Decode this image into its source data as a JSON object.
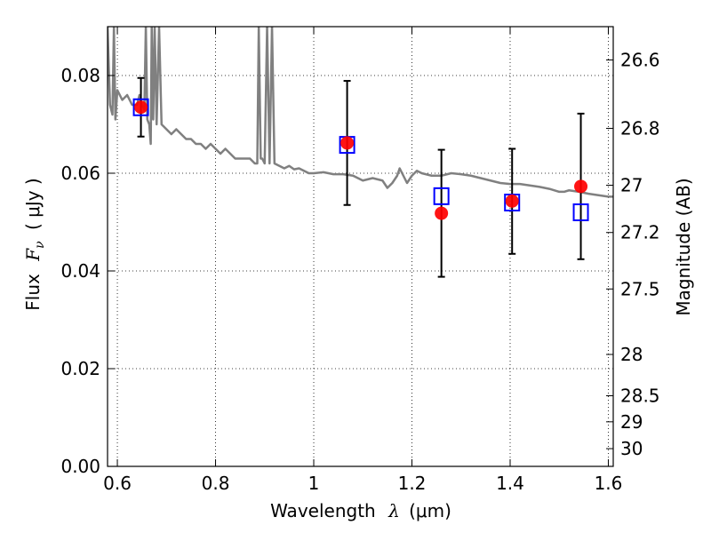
{
  "chart_data": {
    "type": "scatter",
    "xlabel": {
      "prefix": "Wavelength",
      "symbol": "λ",
      "unit": "(μm)"
    },
    "ylabel": {
      "prefix": "Flux",
      "symbol": "F",
      "sub": "ν",
      "unit": "( μJy )"
    },
    "ylabel_right": "Magnitude (AB)",
    "xlim": [
      0.58,
      1.61
    ],
    "ylim": [
      0,
      0.09
    ],
    "grid": true,
    "x_ticks": [
      {
        "v": 0.6,
        "label": "0.6"
      },
      {
        "v": 0.8,
        "label": "0.8"
      },
      {
        "v": 1.0,
        "label": "1"
      },
      {
        "v": 1.2,
        "label": "1.2"
      },
      {
        "v": 1.4,
        "label": "1.4"
      },
      {
        "v": 1.6,
        "label": "1.6"
      }
    ],
    "y_ticks": [
      {
        "v": 0.0,
        "label": "0.00"
      },
      {
        "v": 0.02,
        "label": "0.02"
      },
      {
        "v": 0.04,
        "label": "0.04"
      },
      {
        "v": 0.06,
        "label": "0.06"
      },
      {
        "v": 0.08,
        "label": "0.08"
      }
    ],
    "mag_ticks": [
      {
        "v": 26.6,
        "label": "26.6"
      },
      {
        "v": 26.8,
        "label": "26.8"
      },
      {
        "v": 27.0,
        "label": "27"
      },
      {
        "v": 27.2,
        "label": "27.2"
      },
      {
        "v": 27.5,
        "label": "27.5"
      },
      {
        "v": 28.0,
        "label": "28"
      },
      {
        "v": 28.5,
        "label": "28.5"
      },
      {
        "v": 29.0,
        "label": "29"
      },
      {
        "v": 30.0,
        "label": "30"
      }
    ],
    "series": [
      {
        "kind": "line",
        "color": "#808080",
        "points": [
          [
            0.58,
            0.09
          ],
          [
            0.585,
            0.074
          ],
          [
            0.59,
            0.072
          ],
          [
            0.593,
            0.09
          ],
          [
            0.596,
            0.071
          ],
          [
            0.6,
            0.077
          ],
          [
            0.61,
            0.075
          ],
          [
            0.62,
            0.076
          ],
          [
            0.63,
            0.074
          ],
          [
            0.64,
            0.074
          ],
          [
            0.645,
            0.076
          ],
          [
            0.65,
            0.074
          ],
          [
            0.655,
            0.073
          ],
          [
            0.658,
            0.09
          ],
          [
            0.661,
            0.071
          ],
          [
            0.665,
            0.07
          ],
          [
            0.668,
            0.066
          ],
          [
            0.67,
            0.09
          ],
          [
            0.673,
            0.071
          ],
          [
            0.676,
            0.09
          ],
          [
            0.68,
            0.07
          ],
          [
            0.685,
            0.09
          ],
          [
            0.69,
            0.07
          ],
          [
            0.7,
            0.069
          ],
          [
            0.71,
            0.068
          ],
          [
            0.72,
            0.069
          ],
          [
            0.73,
            0.068
          ],
          [
            0.74,
            0.067
          ],
          [
            0.75,
            0.067
          ],
          [
            0.76,
            0.066
          ],
          [
            0.77,
            0.066
          ],
          [
            0.78,
            0.065
          ],
          [
            0.79,
            0.066
          ],
          [
            0.8,
            0.065
          ],
          [
            0.81,
            0.064
          ],
          [
            0.82,
            0.065
          ],
          [
            0.83,
            0.064
          ],
          [
            0.84,
            0.063
          ],
          [
            0.85,
            0.063
          ],
          [
            0.86,
            0.063
          ],
          [
            0.87,
            0.063
          ],
          [
            0.88,
            0.062
          ],
          [
            0.885,
            0.062
          ],
          [
            0.888,
            0.09
          ],
          [
            0.892,
            0.063
          ],
          [
            0.895,
            0.063
          ],
          [
            0.9,
            0.062
          ],
          [
            0.905,
            0.09
          ],
          [
            0.91,
            0.062
          ],
          [
            0.915,
            0.09
          ],
          [
            0.92,
            0.062
          ],
          [
            0.93,
            0.0615
          ],
          [
            0.94,
            0.061
          ],
          [
            0.95,
            0.0615
          ],
          [
            0.96,
            0.0608
          ],
          [
            0.97,
            0.061
          ],
          [
            0.98,
            0.0605
          ],
          [
            0.99,
            0.06
          ],
          [
            1.0,
            0.06
          ],
          [
            1.02,
            0.0602
          ],
          [
            1.04,
            0.0598
          ],
          [
            1.06,
            0.0598
          ],
          [
            1.08,
            0.0595
          ],
          [
            1.1,
            0.0585
          ],
          [
            1.12,
            0.059
          ],
          [
            1.14,
            0.0585
          ],
          [
            1.15,
            0.057
          ],
          [
            1.16,
            0.058
          ],
          [
            1.17,
            0.0595
          ],
          [
            1.175,
            0.061
          ],
          [
            1.18,
            0.06
          ],
          [
            1.19,
            0.058
          ],
          [
            1.2,
            0.0595
          ],
          [
            1.21,
            0.0605
          ],
          [
            1.22,
            0.06
          ],
          [
            1.24,
            0.0595
          ],
          [
            1.26,
            0.0595
          ],
          [
            1.28,
            0.06
          ],
          [
            1.3,
            0.0598
          ],
          [
            1.32,
            0.0595
          ],
          [
            1.34,
            0.059
          ],
          [
            1.36,
            0.0585
          ],
          [
            1.38,
            0.058
          ],
          [
            1.4,
            0.0578
          ],
          [
            1.42,
            0.0578
          ],
          [
            1.44,
            0.0575
          ],
          [
            1.46,
            0.0572
          ],
          [
            1.48,
            0.0568
          ],
          [
            1.5,
            0.0562
          ],
          [
            1.51,
            0.0562
          ],
          [
            1.52,
            0.0565
          ],
          [
            1.54,
            0.0562
          ],
          [
            1.56,
            0.0558
          ],
          [
            1.58,
            0.0555
          ],
          [
            1.6,
            0.0552
          ],
          [
            1.61,
            0.0552
          ]
        ]
      },
      {
        "kind": "errorbars",
        "color": "#000000",
        "points": [
          {
            "x": 0.648,
            "y": 0.0737,
            "ylo": 0.0675,
            "yhi": 0.0795
          },
          {
            "x": 1.068,
            "y": 0.0662,
            "ylo": 0.0535,
            "yhi": 0.0789
          },
          {
            "x": 1.26,
            "y": 0.0518,
            "ylo": 0.0388,
            "yhi": 0.0648
          },
          {
            "x": 1.404,
            "y": 0.0543,
            "ylo": 0.0435,
            "yhi": 0.065
          },
          {
            "x": 1.544,
            "y": 0.0573,
            "ylo": 0.0424,
            "yhi": 0.0722
          }
        ]
      },
      {
        "kind": "squares",
        "color": "#0000ff",
        "points": [
          [
            0.648,
            0.0735
          ],
          [
            1.068,
            0.0658
          ],
          [
            1.26,
            0.0553
          ],
          [
            1.404,
            0.054
          ],
          [
            1.544,
            0.052
          ]
        ]
      },
      {
        "kind": "circles",
        "color": "#ff0000",
        "points": [
          [
            0.648,
            0.0735
          ],
          [
            1.068,
            0.0662
          ],
          [
            1.26,
            0.0518
          ],
          [
            1.404,
            0.0543
          ],
          [
            1.544,
            0.0573
          ]
        ]
      }
    ]
  }
}
